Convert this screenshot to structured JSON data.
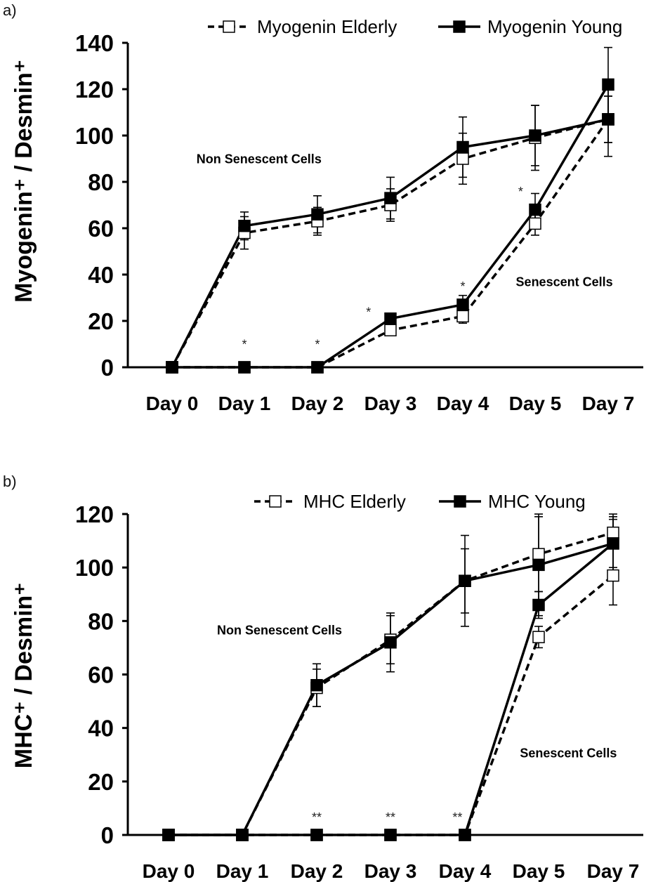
{
  "chart_data": [
    {
      "type": "line",
      "panel_label": "a)",
      "ylabel": "Myogenin⁺ / Desmin⁺",
      "ylim": [
        0,
        140
      ],
      "yticks": [
        "0",
        "20",
        "40",
        "60",
        "80",
        "100",
        "120",
        "140"
      ],
      "categories": [
        "Day 0",
        "Day 1",
        "Day 2",
        "Day 3",
        "Day 4",
        "Day 5",
        "Day 7"
      ],
      "legend": [
        "Myogenin Elderly",
        "Myogenin Young"
      ],
      "legend_position": "top-right",
      "series": [
        {
          "name": "Myogenin Elderly",
          "group": "Non Senescent Cells",
          "style": "dashed-open",
          "x": [
            0,
            1,
            2,
            3,
            4,
            5,
            6
          ],
          "values": [
            0,
            58,
            63,
            70,
            90,
            99,
            107
          ],
          "errors": [
            0,
            7,
            6,
            7,
            11,
            14,
            10
          ]
        },
        {
          "name": "Myogenin Young",
          "group": "Non Senescent Cells",
          "style": "solid-filled",
          "x": [
            0,
            1,
            2,
            3,
            4,
            5,
            6
          ],
          "values": [
            0,
            61,
            66,
            73,
            95,
            100,
            107
          ],
          "errors": [
            0,
            6,
            8,
            9,
            13,
            13,
            16
          ]
        },
        {
          "name": "Myogenin Elderly",
          "group": "Senescent Cells",
          "style": "dashed-open",
          "x": [
            0,
            1,
            2,
            3,
            4,
            5,
            6
          ],
          "values": [
            0,
            0,
            0,
            16,
            22,
            62,
            107
          ],
          "errors": [
            0,
            0,
            0,
            2,
            3,
            5,
            10
          ]
        },
        {
          "name": "Myogenin Young",
          "group": "Senescent Cells",
          "style": "solid-filled",
          "x": [
            0,
            1,
            2,
            3,
            4,
            5,
            6
          ],
          "values": [
            0,
            0,
            0,
            21,
            27,
            68,
            122
          ],
          "errors": [
            0,
            0,
            0,
            2,
            4,
            7,
            16
          ]
        }
      ],
      "annotations": [
        {
          "text": "Non Senescent Cells",
          "x": 1.2,
          "y": 88
        },
        {
          "text": "Senescent Cells",
          "x": 5.4,
          "y": 35
        }
      ],
      "significance": [
        {
          "text": "*",
          "x": 1,
          "y": 8
        },
        {
          "text": "*",
          "x": 2,
          "y": 8
        },
        {
          "text": "*",
          "x": 2.7,
          "y": 22
        },
        {
          "text": "*",
          "x": 4,
          "y": 33
        },
        {
          "text": "*",
          "x": 4.8,
          "y": 74
        }
      ]
    },
    {
      "type": "line",
      "panel_label": "b)",
      "ylabel": "MHC⁺ / Desmin⁺",
      "ylim": [
        0,
        120
      ],
      "yticks": [
        "0",
        "20",
        "40",
        "60",
        "80",
        "100",
        "120"
      ],
      "categories": [
        "Day 0",
        "Day 1",
        "Day 2",
        "Day 3",
        "Day 4",
        "Day 5",
        "Day 7"
      ],
      "legend": [
        "MHC Elderly",
        "MHC Young"
      ],
      "legend_position": "top-right",
      "series": [
        {
          "name": "MHC Elderly",
          "group": "Non Senescent Cells",
          "style": "dashed-open",
          "x": [
            0,
            1,
            2,
            3,
            4,
            5,
            6
          ],
          "values": [
            0,
            0,
            55,
            73,
            95,
            105,
            113
          ],
          "errors": [
            0,
            0,
            7,
            9,
            12,
            14,
            6
          ]
        },
        {
          "name": "MHC Young",
          "group": "Non Senescent Cells",
          "style": "solid-filled",
          "x": [
            0,
            1,
            2,
            3,
            4,
            5,
            6
          ],
          "values": [
            0,
            0,
            56,
            72,
            95,
            101,
            109
          ],
          "errors": [
            0,
            0,
            8,
            11,
            17,
            19,
            11
          ]
        },
        {
          "name": "MHC Elderly",
          "group": "Senescent Cells",
          "style": "dashed-open",
          "x": [
            0,
            1,
            2,
            3,
            4,
            5,
            6
          ],
          "values": [
            0,
            0,
            0,
            0,
            0,
            74,
            97
          ],
          "errors": [
            0,
            0,
            0,
            0,
            0,
            4,
            11
          ]
        },
        {
          "name": "MHC Young",
          "group": "Senescent Cells",
          "style": "solid-filled",
          "x": [
            0,
            1,
            2,
            3,
            4,
            5,
            6
          ],
          "values": [
            0,
            0,
            0,
            0,
            0,
            86,
            109
          ],
          "errors": [
            0,
            0,
            0,
            0,
            0,
            5,
            9
          ]
        }
      ],
      "annotations": [
        {
          "text": "Non Senescent Cells",
          "x": 1.5,
          "y": 75
        },
        {
          "text": "Senescent Cells",
          "x": 5.4,
          "y": 29
        }
      ],
      "significance": [
        {
          "text": "**",
          "x": 2,
          "y": 5
        },
        {
          "text": "**",
          "x": 3,
          "y": 5
        },
        {
          "text": "**",
          "x": 3.9,
          "y": 5
        }
      ]
    }
  ]
}
